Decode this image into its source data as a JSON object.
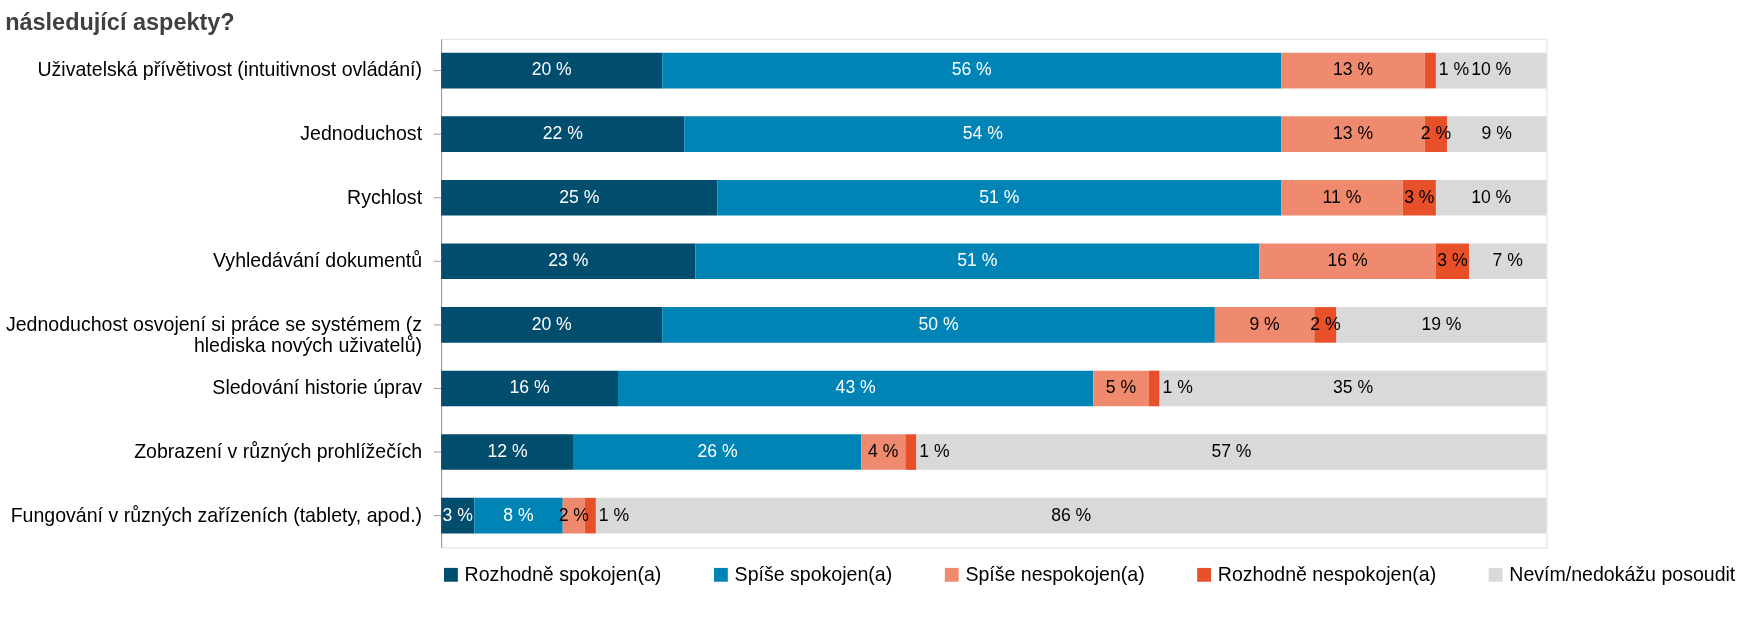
{
  "chart_data": {
    "type": "bar",
    "orientation": "horizontal",
    "stacked": true,
    "title": "následující aspekty?",
    "categories": [
      "Uživatelská přívětivost (intuitivnost ovládání)",
      "Jednoduchost",
      "Rychlost",
      "Vyhledávání dokumentů",
      "Jednoduchost osvojení si práce se systémem (z hlediska nových uživatelů)",
      "Sledování historie úprav",
      "Zobrazení v různých prohlížečích",
      "Fungování v různých zařízeních (tablety, apod.)"
    ],
    "xlim": [
      0,
      100
    ],
    "tick_labels": "y",
    "grid": false,
    "legend": "bottom",
    "series": [
      {
        "name": "Rozhodně spokojen(a)",
        "color": "#004d6e",
        "values": [
          20,
          22,
          25,
          23,
          20,
          16,
          12,
          3
        ],
        "value_labels": [
          "20 %",
          "22 %",
          "25 %",
          "23 %",
          "20 %",
          "16 %",
          "12 %",
          "3 %"
        ]
      },
      {
        "name": "Spíše spokojen(a)",
        "color": "#0084b6",
        "values": [
          56,
          54,
          51,
          51,
          50,
          43,
          26,
          8
        ],
        "value_labels": [
          "56 %",
          "54 %",
          "51 %",
          "51 %",
          "50 %",
          "43 %",
          "26 %",
          "8 %"
        ]
      },
      {
        "name": "Spíše nespokojen(a)",
        "color": "#f08a6e",
        "values": [
          13,
          13,
          11,
          16,
          9,
          5,
          4,
          2
        ],
        "value_labels": [
          "13 %",
          "13 %",
          "11 %",
          "16 %",
          "9 %",
          "5 %",
          "4 %",
          "2 %"
        ]
      },
      {
        "name": "Rozhodně nespokojen(a)",
        "color": "#e8502a",
        "values": [
          1,
          2,
          3,
          3,
          2,
          1,
          1,
          1
        ],
        "value_labels": [
          "1 %",
          "2 %",
          "3 %",
          "3 %",
          "2 %",
          "1 %",
          "1 %",
          "1 %"
        ]
      },
      {
        "name": "Nevím/nedokážu posoudit",
        "color": "#d9d9d9",
        "values": [
          10,
          9,
          10,
          7,
          19,
          35,
          57,
          86
        ],
        "value_labels": [
          "10 %",
          "9 %",
          "10 %",
          "7 %",
          "19 %",
          "35 %",
          "57 %",
          "86 %"
        ]
      }
    ]
  }
}
